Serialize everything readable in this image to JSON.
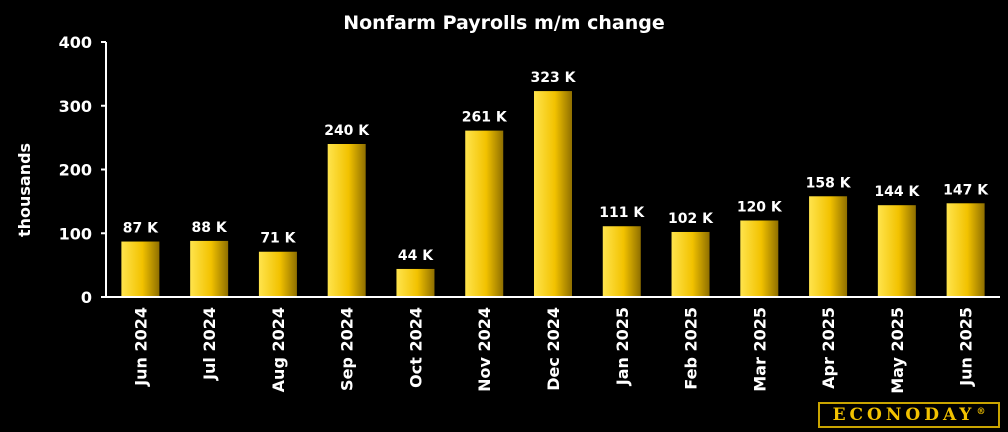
{
  "chart_data": {
    "type": "bar",
    "title": "Nonfarm Payrolls m/m change",
    "ylabel": "thousands",
    "xlabel": "",
    "ylim": [
      0,
      400
    ],
    "yticks": [
      0,
      100,
      200,
      300,
      400
    ],
    "categories": [
      "Jun 2024",
      "Jul 2024",
      "Aug 2024",
      "Sep 2024",
      "Oct 2024",
      "Nov 2024",
      "Dec 2024",
      "Jan 2025",
      "Feb 2025",
      "Mar 2025",
      "Apr 2025",
      "May 2025",
      "Jun 2025"
    ],
    "values": [
      87,
      88,
      71,
      240,
      44,
      261,
      323,
      111,
      102,
      120,
      158,
      144,
      147
    ],
    "data_labels": [
      "87 K",
      "88 K",
      "71 K",
      "240 K",
      "44 K",
      "261 K",
      "323 K",
      "111 K",
      "102 K",
      "120 K",
      "158 K",
      "144 K",
      "147 K"
    ],
    "grid": false,
    "legend": "none",
    "bar_color_light": "#ffe44d",
    "bar_color_mid": "#f2c200",
    "bar_color_dark": "#8f6f00"
  },
  "logo": {
    "text": "ECONODAY",
    "mark": "®"
  }
}
